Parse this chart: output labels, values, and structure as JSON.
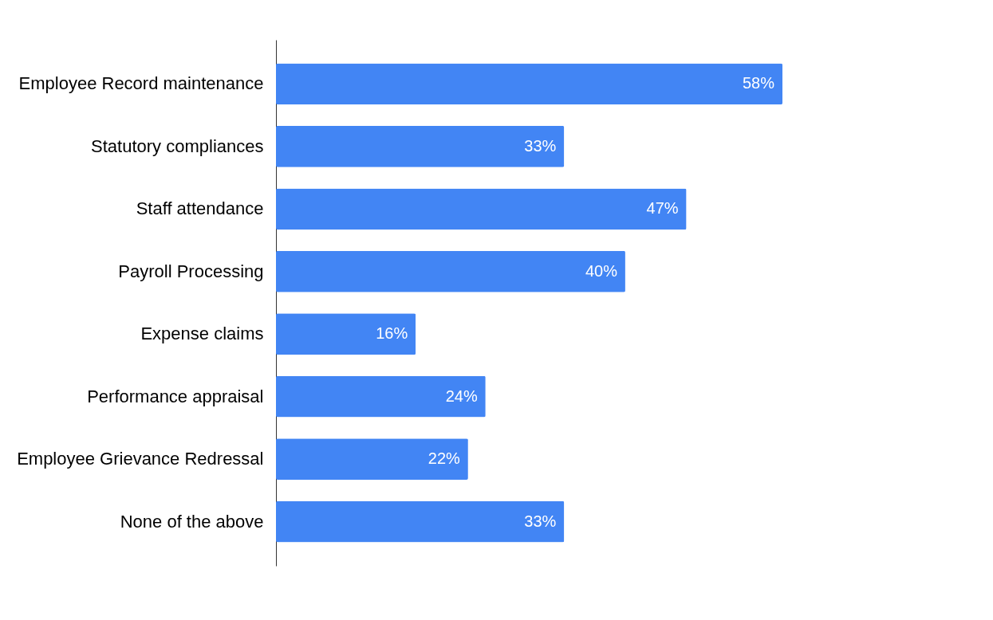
{
  "chart_data": {
    "type": "bar",
    "orientation": "horizontal",
    "categories": [
      "Employee Record maintenance",
      "Statutory compliances",
      "Staff attendance",
      "Payroll Processing",
      "Expense claims",
      "Performance appraisal",
      "Employee Grievance Redressal",
      "None of the above"
    ],
    "values": [
      58,
      33,
      47,
      40,
      16,
      24,
      22,
      33
    ],
    "value_labels": [
      "58%",
      "33%",
      "47%",
      "40%",
      "16%",
      "24%",
      "22%",
      "33%"
    ],
    "color": "#4285f4"
  }
}
